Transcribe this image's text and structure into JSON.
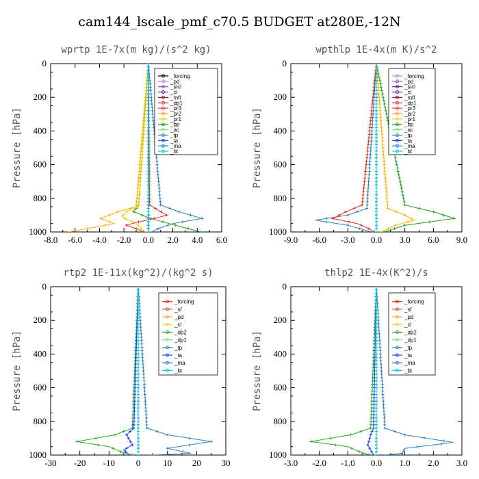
{
  "figure_title": "cam144_lscale_pmf_c70.5  BUDGET at280E,-12N",
  "chart_data": [
    {
      "type": "line",
      "title": "wprtp  1E-7x(m kg)/(s^2 kg)",
      "ylabel": "Pressure [hPa]",
      "xlim": [
        -8,
        6
      ],
      "ylim": [
        1000,
        0
      ],
      "xticks": [
        "-8.0",
        "-6.0",
        "-4.0",
        "-2.0",
        "0.0",
        "2.0",
        "4.0",
        "6.0"
      ],
      "xtick_values": [
        -8,
        -6,
        -4,
        -2,
        0,
        2,
        4,
        6
      ],
      "yticks": [
        "0",
        "200",
        "400",
        "600",
        "800",
        "1000"
      ],
      "ytick_values": [
        0,
        200,
        400,
        600,
        800,
        1000
      ],
      "series": [
        {
          "name": "_forcing",
          "color": "#000000",
          "marker": "o",
          "p": [
            0,
            1000
          ],
          "x": [
            0,
            0
          ]
        },
        {
          "name": "_pd",
          "color": "#c080e0",
          "p": [
            0,
            1000
          ],
          "x": [
            0,
            0
          ]
        },
        {
          "name": "_sicl",
          "color": "#8060c0",
          "p": [
            0,
            1000
          ],
          "x": [
            0,
            0
          ]
        },
        {
          "name": "_cl",
          "color": "#6020a0",
          "p": [
            0,
            1000
          ],
          "x": [
            0,
            0
          ]
        },
        {
          "name": "_mfl",
          "color": "#a01040",
          "p": [
            0,
            1000
          ],
          "x": [
            0,
            0
          ]
        },
        {
          "name": "_dp1",
          "color": "#e03020",
          "p": [
            0,
            840,
            870,
            900,
            920,
            940,
            960,
            980,
            1000
          ],
          "x": [
            0,
            0.1,
            0.8,
            1.5,
            0.5,
            -0.8,
            -1.8,
            -1.0,
            -0.4
          ]
        },
        {
          "name": "_pr3",
          "color": "#ff4040",
          "p": [
            0,
            1000
          ],
          "x": [
            0,
            0
          ]
        },
        {
          "name": "_pr2",
          "color": "#ffa040",
          "p": [
            0,
            1000
          ],
          "x": [
            0,
            0
          ]
        },
        {
          "name": "_pr1",
          "color": "#f0d020",
          "p": [
            0,
            1000
          ],
          "x": [
            0,
            0
          ]
        },
        {
          "name": "_bp",
          "color": "#20a020",
          "p": [
            0,
            840,
            880,
            920,
            960,
            1000
          ],
          "x": [
            0,
            -0.8,
            -1.2,
            0.2,
            2.2,
            4.3
          ]
        },
        {
          "name": "_ac",
          "color": "#80e080",
          "p": [
            0,
            1000
          ],
          "x": [
            0,
            0
          ]
        },
        {
          "name": "_tp",
          "color": "#3080c0",
          "p": [
            0,
            840,
            880,
            920,
            950,
            980,
            1000
          ],
          "x": [
            0,
            1.0,
            2.5,
            4.4,
            2.0,
            0.8,
            0.3
          ]
        },
        {
          "name": "_ta",
          "color": "#2040ff",
          "p": [
            0,
            1000
          ],
          "x": [
            0,
            0
          ]
        },
        {
          "name": "_ma",
          "color": "#2080e0",
          "p": [
            0,
            1000
          ],
          "x": [
            0,
            0
          ]
        },
        {
          "name": "_bt",
          "color": "#00d0d0",
          "p": [
            0,
            1000
          ],
          "x": [
            0,
            0
          ]
        },
        {
          "name": "_orange",
          "color": "#ffb000",
          "legend": false,
          "p": [
            0,
            850,
            880,
            920,
            950,
            980,
            1000
          ],
          "x": [
            0,
            -1.0,
            -2.5,
            -3.9,
            -2.8,
            -5.0,
            -6.5
          ]
        },
        {
          "name": "_yellow",
          "color": "#e8d000",
          "legend": false,
          "p": [
            0,
            850,
            880,
            910,
            950,
            1000
          ],
          "x": [
            0,
            -0.8,
            -1.8,
            -2.2,
            -1.0,
            -0.3
          ]
        }
      ]
    },
    {
      "type": "line",
      "title": "wpthlp  1E-4x(m K)/s^2",
      "ylabel": "Pressure [hPa]",
      "xlim": [
        -9,
        9
      ],
      "ylim": [
        1000,
        0
      ],
      "xticks": [
        "-9.0",
        "-6.0",
        "-3.0",
        "0.0",
        "3.0",
        "6.0",
        "9.0"
      ],
      "xtick_values": [
        -9,
        -6,
        -3,
        0,
        3,
        6,
        9
      ],
      "yticks": [
        "0",
        "200",
        "400",
        "600",
        "800",
        "1000"
      ],
      "ytick_values": [
        0,
        200,
        400,
        600,
        800,
        1000
      ],
      "series": [
        {
          "name": "_forcing",
          "color": "#c080e0",
          "p": [
            0,
            1000
          ],
          "x": [
            0,
            0
          ]
        },
        {
          "name": "_pd",
          "color": "#8060c0",
          "p": [
            0,
            1000
          ],
          "x": [
            0,
            0
          ]
        },
        {
          "name": "_sicl",
          "color": "#6020a0",
          "p": [
            0,
            1000
          ],
          "x": [
            0,
            0
          ]
        },
        {
          "name": "_cl",
          "color": "#8020a0",
          "p": [
            0,
            1000
          ],
          "x": [
            0,
            0
          ]
        },
        {
          "name": "_mfl",
          "color": "#a01040",
          "p": [
            0,
            1000
          ],
          "x": [
            0,
            0
          ]
        },
        {
          "name": "_dp1",
          "color": "#e03020",
          "p": [
            0,
            840,
            880,
            920,
            950,
            980,
            1000
          ],
          "x": [
            0,
            -1.5,
            -3.2,
            -4.6,
            -2.0,
            -0.8,
            -0.2
          ]
        },
        {
          "name": "_pr3",
          "color": "#ff4040",
          "p": [
            0,
            1000
          ],
          "x": [
            0,
            0
          ]
        },
        {
          "name": "_pr2",
          "color": "#ffa040",
          "p": [
            0,
            1000
          ],
          "x": [
            0,
            0
          ]
        },
        {
          "name": "_pr1",
          "color": "#f0d020",
          "p": [
            0,
            1000
          ],
          "x": [
            0,
            0
          ]
        },
        {
          "name": "_bp",
          "color": "#20a020",
          "p": [
            0,
            840,
            880,
            920,
            960,
            1000
          ],
          "x": [
            0,
            3.0,
            6.0,
            8.2,
            3.0,
            0.8
          ]
        },
        {
          "name": "_ac",
          "color": "#80e080",
          "p": [
            0,
            1000
          ],
          "x": [
            0,
            0
          ]
        },
        {
          "name": "_tp",
          "color": "#3080c0",
          "p": [
            0,
            860,
            900,
            930,
            960,
            1000
          ],
          "x": [
            0,
            -1.0,
            -3.0,
            -6.4,
            -3.0,
            -0.5
          ]
        },
        {
          "name": "_ta",
          "color": "#2040ff",
          "p": [
            0,
            1000
          ],
          "x": [
            0,
            0
          ]
        },
        {
          "name": "_ma",
          "color": "#2080e0",
          "p": [
            0,
            1000
          ],
          "x": [
            0,
            0
          ]
        },
        {
          "name": "_bt",
          "color": "#00d0d0",
          "p": [
            0,
            1000
          ],
          "x": [
            0,
            0
          ]
        },
        {
          "name": "_orange",
          "color": "#ffb000",
          "legend": false,
          "p": [
            0,
            860,
            900,
            930,
            960,
            1000
          ],
          "x": [
            0,
            1.2,
            3.0,
            4.0,
            2.0,
            0.5
          ]
        }
      ]
    },
    {
      "type": "line",
      "title": "rtp2  1E-11x(kg^2)/(kg^2 s)",
      "ylabel": "Pressure [hPa]",
      "xlim": [
        -30,
        30
      ],
      "ylim": [
        1000,
        0
      ],
      "xticks": [
        "-30",
        "-20",
        "-10",
        "0",
        "10",
        "20",
        "30"
      ],
      "xtick_values": [
        -30,
        -20,
        -10,
        0,
        10,
        20,
        30
      ],
      "yticks": [
        "0",
        "200",
        "400",
        "600",
        "800",
        "1000"
      ],
      "ytick_values": [
        0,
        200,
        400,
        600,
        800,
        1000
      ],
      "series": [
        {
          "name": "_forcing",
          "color": "#e03020",
          "p": [
            0,
            1000
          ],
          "x": [
            0,
            0
          ]
        },
        {
          "name": "_sf",
          "color": "#e05030",
          "p": [
            0,
            1000
          ],
          "x": [
            0,
            0
          ]
        },
        {
          "name": "_pd",
          "color": "#ffa040",
          "p": [
            0,
            1000
          ],
          "x": [
            0,
            0
          ]
        },
        {
          "name": "_cl",
          "color": "#f0d020",
          "p": [
            0,
            1000
          ],
          "x": [
            0,
            0
          ]
        },
        {
          "name": "_dp2",
          "color": "#20b020",
          "p": [
            0,
            840,
            880,
            920,
            950,
            980,
            1000
          ],
          "x": [
            0,
            -2.0,
            -8.0,
            -21.0,
            -10.0,
            -6.0,
            -2.0
          ]
        },
        {
          "name": "_dp1",
          "color": "#80e080",
          "p": [
            0,
            1000
          ],
          "x": [
            0,
            0
          ]
        },
        {
          "name": "_tp",
          "color": "#3080c0",
          "p": [
            0,
            840,
            880,
            920,
            960,
            990,
            1000
          ],
          "x": [
            0,
            3.0,
            10.0,
            25.0,
            10.0,
            18.0,
            5.0
          ]
        },
        {
          "name": "_ta",
          "color": "#2040ff",
          "p": [
            0,
            840,
            880,
            940,
            970,
            1000
          ],
          "x": [
            0,
            -1.5,
            -4.0,
            -2.0,
            -5.0,
            -3.0
          ]
        },
        {
          "name": "_ma",
          "color": "#2080e0",
          "p": [
            0,
            1000
          ],
          "x": [
            0,
            0
          ]
        },
        {
          "name": "_bt",
          "color": "#00d0d0",
          "p": [
            0,
            1000
          ],
          "x": [
            0,
            0
          ]
        }
      ]
    },
    {
      "type": "line",
      "title": "thlp2  1E-4x(K^2)/s",
      "ylabel": "Pressure [hPa]",
      "xlim": [
        -3,
        3
      ],
      "ylim": [
        1000,
        0
      ],
      "xticks": [
        "-3.0",
        "-2.0",
        "-1.0",
        "0.0",
        "1.0",
        "2.0",
        "3.0"
      ],
      "xtick_values": [
        -3,
        -2,
        -1,
        0,
        1,
        2,
        3
      ],
      "yticks": [
        "0",
        "200",
        "400",
        "600",
        "800",
        "1000"
      ],
      "ytick_values": [
        0,
        200,
        400,
        600,
        800,
        1000
      ],
      "series": [
        {
          "name": "_forcing",
          "color": "#e03020",
          "p": [
            0,
            1000
          ],
          "x": [
            0,
            0
          ]
        },
        {
          "name": "_sf",
          "color": "#e05030",
          "p": [
            0,
            1000
          ],
          "x": [
            0,
            0
          ]
        },
        {
          "name": "_pd",
          "color": "#ffa040",
          "p": [
            0,
            1000
          ],
          "x": [
            0,
            0
          ]
        },
        {
          "name": "_cl",
          "color": "#f0d020",
          "p": [
            0,
            1000
          ],
          "x": [
            0,
            0
          ]
        },
        {
          "name": "_dp2",
          "color": "#20b020",
          "p": [
            0,
            840,
            880,
            920,
            950,
            980,
            1000
          ],
          "x": [
            0,
            -0.2,
            -0.9,
            -2.3,
            -1.0,
            -0.6,
            -0.2
          ]
        },
        {
          "name": "_dp1",
          "color": "#80e080",
          "p": [
            0,
            1000
          ],
          "x": [
            0,
            0
          ]
        },
        {
          "name": "_tp",
          "color": "#3080c0",
          "p": [
            0,
            840,
            880,
            925,
            960,
            990,
            1000
          ],
          "x": [
            0,
            0.3,
            1.0,
            2.7,
            1.0,
            0.9,
            0.3
          ]
        },
        {
          "name": "_ta",
          "color": "#2040ff",
          "p": [
            0,
            840,
            880,
            940,
            970,
            1000
          ],
          "x": [
            0,
            -0.1,
            -0.2,
            -0.3,
            -0.2,
            -0.1
          ]
        },
        {
          "name": "_ma",
          "color": "#2080e0",
          "p": [
            0,
            1000
          ],
          "x": [
            0,
            0
          ]
        },
        {
          "name": "_bt",
          "color": "#00d0d0",
          "p": [
            0,
            1000
          ],
          "x": [
            0,
            0
          ]
        }
      ]
    }
  ]
}
